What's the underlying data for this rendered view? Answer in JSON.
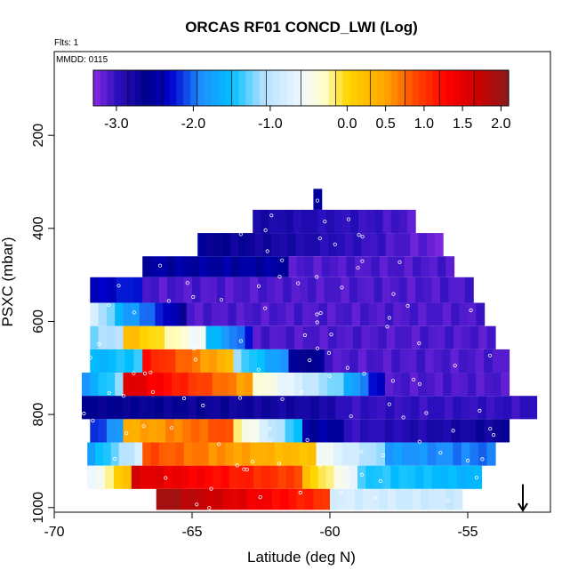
{
  "chart_data": {
    "type": "heatmap",
    "title": "ORCAS RF01 CONCD_LWI (Log)",
    "corner_texts": [
      "Flts: 1",
      "MMDD: 0115"
    ],
    "xlabel": "Latitude (deg N)",
    "ylabel": "PSXC (mbar)",
    "xlim": [
      -70,
      -52
    ],
    "ylim": [
      1010,
      20
    ],
    "y_reversed": true,
    "x_ticks": [
      -70,
      -65,
      -60,
      -55
    ],
    "y_ticks": [
      200,
      400,
      600,
      800,
      1000
    ],
    "grid": false,
    "colorbar": {
      "range": [
        -3.3,
        2.1
      ],
      "tick_values": [
        -3.0,
        -2.0,
        -1.0,
        0.0,
        0.5,
        1.0,
        1.5,
        2.0
      ],
      "tick_labels": [
        "-3.0",
        "-2.0",
        "-1.0",
        "0.0",
        "0.5",
        "1.0",
        "1.5",
        "2.0"
      ],
      "color_stops": [
        [
          -3.3,
          "#8a2be2"
        ],
        [
          -3.0,
          "#2e10c0"
        ],
        [
          -2.6,
          "#00008b"
        ],
        [
          -2.3,
          "#0000cd"
        ],
        [
          -1.9,
          "#1e90ff"
        ],
        [
          -1.5,
          "#00bfff"
        ],
        [
          -1.1,
          "#b0e0ff"
        ],
        [
          -0.6,
          "#f0f8ff"
        ],
        [
          -0.3,
          "#ffffcc"
        ],
        [
          0.0,
          "#ffd700"
        ],
        [
          0.5,
          "#ffa500"
        ],
        [
          0.9,
          "#ff4500"
        ],
        [
          1.3,
          "#ff0000"
        ],
        [
          1.7,
          "#cc0000"
        ],
        [
          2.1,
          "#8b1a1a"
        ]
      ]
    },
    "arrow_annotation": {
      "x": -53,
      "y_from": 950,
      "y_to": 1010,
      "direction": "down"
    },
    "rows": [
      {
        "p_top": 315,
        "p_bot": 360,
        "segments": [
          [
            -60.6,
            -60.3,
            -2.5
          ]
        ]
      },
      {
        "p_top": 360,
        "p_bot": 410,
        "segments": [
          [
            -62.8,
            -56.9,
            [
              -2.8,
              -3.1
            ]
          ]
        ]
      },
      {
        "p_top": 410,
        "p_bot": 460,
        "segments": [
          [
            -64.8,
            -55.9,
            [
              -2.6,
              -3.2
            ]
          ]
        ]
      },
      {
        "p_top": 460,
        "p_bot": 505,
        "segments": [
          [
            -66.8,
            -61.5,
            -2.5
          ],
          [
            -61.5,
            -55.5,
            -3.1
          ]
        ]
      },
      {
        "p_top": 505,
        "p_bot": 560,
        "segments": [
          [
            -68.7,
            -66.8,
            [
              -2.4,
              -2.2
            ]
          ],
          [
            -66.8,
            -54.8,
            -3.1
          ]
        ]
      },
      {
        "p_top": 560,
        "p_bot": 610,
        "segments": [
          [
            -68.7,
            -67.2,
            [
              -0.8,
              -1.8
            ]
          ],
          [
            -67.2,
            -65.2,
            [
              -1.8,
              -2.6
            ]
          ],
          [
            -65.2,
            -54.4,
            -3.1
          ]
        ]
      },
      {
        "p_top": 610,
        "p_bot": 660,
        "segments": [
          [
            -68.7,
            -67.5,
            [
              -1.2,
              -1.0
            ]
          ],
          [
            -67.5,
            -64.5,
            [
              0.3,
              -0.6
            ]
          ],
          [
            -64.5,
            -62.8,
            [
              -1.5,
              -2.2
            ]
          ],
          [
            -62.8,
            -54.0,
            -3.1
          ]
        ]
      },
      {
        "p_top": 660,
        "p_bot": 710,
        "segments": [
          [
            -68.7,
            -66.8,
            [
              -1.6,
              -1.4
            ]
          ],
          [
            -66.8,
            -63.5,
            [
              1.2,
              0.3
            ]
          ],
          [
            -63.5,
            -61.5,
            [
              -1.2,
              -1.9
            ]
          ],
          [
            -61.5,
            -60.2,
            -2.6
          ],
          [
            -60.2,
            -53.5,
            -3.1
          ]
        ]
      },
      {
        "p_top": 710,
        "p_bot": 760,
        "segments": [
          [
            -69.0,
            -67.5,
            [
              -1.8,
              -1.2
            ]
          ],
          [
            -67.5,
            -62.8,
            [
              1.6,
              0.5
            ]
          ],
          [
            -62.8,
            -59.5,
            [
              -0.3,
              -1.3
            ]
          ],
          [
            -59.5,
            -58.0,
            [
              -1.6,
              -2.4
            ]
          ],
          [
            -58.0,
            -53.5,
            -3.1
          ]
        ]
      },
      {
        "p_top": 760,
        "p_bot": 810,
        "segments": [
          [
            -69.0,
            -59.8,
            [
              -2.6,
              -2.8
            ]
          ],
          [
            -59.8,
            -52.5,
            -3.0
          ]
        ]
      },
      {
        "p_top": 810,
        "p_bot": 860,
        "segments": [
          [
            -68.7,
            -67.5,
            [
              -2.2,
              -1.8
            ]
          ],
          [
            -67.5,
            -63.5,
            [
              0.4,
              0.9
            ]
          ],
          [
            -63.5,
            -61.0,
            [
              -0.2,
              -1.5
            ]
          ],
          [
            -61.0,
            -59.5,
            -2.5
          ],
          [
            -59.5,
            -53.5,
            [
              -3.0,
              -2.7
            ]
          ]
        ]
      },
      {
        "p_top": 860,
        "p_bot": 910,
        "segments": [
          [
            -68.8,
            -66.8,
            [
              -1.7,
              -0.8
            ]
          ],
          [
            -66.8,
            -60.5,
            [
              0.9,
              0.2
            ]
          ],
          [
            -60.5,
            -58.0,
            [
              -0.5,
              -1.2
            ]
          ],
          [
            -58.0,
            -54.0,
            [
              -1.8,
              -2.0
            ]
          ]
        ]
      },
      {
        "p_top": 910,
        "p_bot": 960,
        "segments": [
          [
            -68.8,
            -67.2,
            [
              -0.7,
              0.3
            ]
          ],
          [
            -67.2,
            -61.0,
            [
              1.6,
              0.9
            ]
          ],
          [
            -61.0,
            -59.0,
            [
              0.2,
              -0.7
            ]
          ],
          [
            -59.0,
            -54.5,
            [
              -1.4,
              -1.6
            ]
          ]
        ]
      },
      {
        "p_top": 960,
        "p_bot": 1005,
        "segments": [
          [
            -66.3,
            -60.0,
            [
              2.0,
              1.0
            ]
          ],
          [
            -60.0,
            -55.2,
            [
              -0.8,
              -0.9
            ]
          ]
        ]
      }
    ]
  }
}
